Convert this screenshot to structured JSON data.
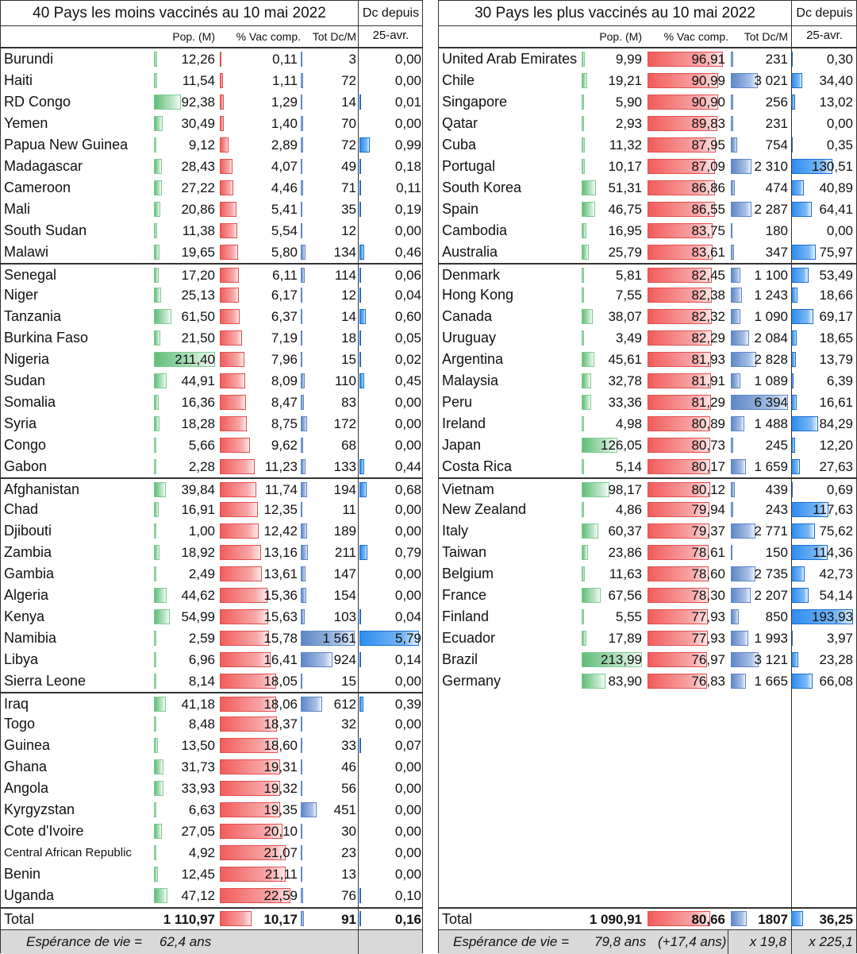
{
  "left": {
    "title": "40 Pays les moins vaccinés au 10 mai 2022",
    "dc_title": "Dc depuis",
    "headers": {
      "pop": "Pop. (M)",
      "vac": "% Vac comp.",
      "tot": "Tot Dc/M",
      "dc": "25-avr."
    },
    "rows": [
      {
        "country": "Burundi",
        "pop": "12,26",
        "vac": "0,11",
        "tot": "3",
        "dc": "0,00"
      },
      {
        "country": "Haiti",
        "pop": "11,54",
        "vac": "1,11",
        "tot": "72",
        "dc": "0,00"
      },
      {
        "country": "RD Congo",
        "pop": "92,38",
        "vac": "1,29",
        "tot": "14",
        "dc": "0,01"
      },
      {
        "country": "Yemen",
        "pop": "30,49",
        "vac": "1,40",
        "tot": "70",
        "dc": "0,00"
      },
      {
        "country": "Papua New Guinea",
        "pop": "9,12",
        "vac": "2,89",
        "tot": "72",
        "dc": "0,99"
      },
      {
        "country": "Madagascar",
        "pop": "28,43",
        "vac": "4,07",
        "tot": "49",
        "dc": "0,18"
      },
      {
        "country": "Cameroon",
        "pop": "27,22",
        "vac": "4,46",
        "tot": "71",
        "dc": "0,11"
      },
      {
        "country": "Mali",
        "pop": "20,86",
        "vac": "5,41",
        "tot": "35",
        "dc": "0,19"
      },
      {
        "country": "South Sudan",
        "pop": "11,38",
        "vac": "5,54",
        "tot": "12",
        "dc": "0,00"
      },
      {
        "country": "Malawi",
        "pop": "19,65",
        "vac": "5,80",
        "tot": "134",
        "dc": "0,46"
      },
      {
        "country": "Senegal",
        "pop": "17,20",
        "vac": "6,11",
        "tot": "114",
        "dc": "0,06"
      },
      {
        "country": "Niger",
        "pop": "25,13",
        "vac": "6,17",
        "tot": "12",
        "dc": "0,04"
      },
      {
        "country": "Tanzania",
        "pop": "61,50",
        "vac": "6,37",
        "tot": "14",
        "dc": "0,60"
      },
      {
        "country": "Burkina Faso",
        "pop": "21,50",
        "vac": "7,19",
        "tot": "18",
        "dc": "0,05"
      },
      {
        "country": "Nigeria",
        "pop": "211,40",
        "vac": "7,96",
        "tot": "15",
        "dc": "0,02"
      },
      {
        "country": "Sudan",
        "pop": "44,91",
        "vac": "8,09",
        "tot": "110",
        "dc": "0,45"
      },
      {
        "country": "Somalia",
        "pop": "16,36",
        "vac": "8,47",
        "tot": "83",
        "dc": "0,00"
      },
      {
        "country": "Syria",
        "pop": "18,28",
        "vac": "8,75",
        "tot": "172",
        "dc": "0,00"
      },
      {
        "country": "Congo",
        "pop": "5,66",
        "vac": "9,62",
        "tot": "68",
        "dc": "0,00"
      },
      {
        "country": "Gabon",
        "pop": "2,28",
        "vac": "11,23",
        "tot": "133",
        "dc": "0,44"
      },
      {
        "country": "Afghanistan",
        "pop": "39,84",
        "vac": "11,74",
        "tot": "194",
        "dc": "0,68"
      },
      {
        "country": "Chad",
        "pop": "16,91",
        "vac": "12,35",
        "tot": "11",
        "dc": "0,00"
      },
      {
        "country": "Djibouti",
        "pop": "1,00",
        "vac": "12,42",
        "tot": "189",
        "dc": "0,00"
      },
      {
        "country": "Zambia",
        "pop": "18,92",
        "vac": "13,16",
        "tot": "211",
        "dc": "0,79"
      },
      {
        "country": "Gambia",
        "pop": "2,49",
        "vac": "13,61",
        "tot": "147",
        "dc": "0,00"
      },
      {
        "country": "Algeria",
        "pop": "44,62",
        "vac": "15,36",
        "tot": "154",
        "dc": "0,00"
      },
      {
        "country": "Kenya",
        "pop": "54,99",
        "vac": "15,63",
        "tot": "103",
        "dc": "0,04"
      },
      {
        "country": "Namibia",
        "pop": "2,59",
        "vac": "15,78",
        "tot": "1 561",
        "dc": "5,79"
      },
      {
        "country": "Libya",
        "pop": "6,96",
        "vac": "16,41",
        "tot": "924",
        "dc": "0,14"
      },
      {
        "country": "Sierra Leone",
        "pop": "8,14",
        "vac": "18,05",
        "tot": "15",
        "dc": "0,00"
      },
      {
        "country": "Iraq",
        "pop": "41,18",
        "vac": "18,06",
        "tot": "612",
        "dc": "0,39"
      },
      {
        "country": "Togo",
        "pop": "8,48",
        "vac": "18,37",
        "tot": "32",
        "dc": "0,00"
      },
      {
        "country": "Guinea",
        "pop": "13,50",
        "vac": "18,60",
        "tot": "33",
        "dc": "0,07"
      },
      {
        "country": "Ghana",
        "pop": "31,73",
        "vac": "19,31",
        "tot": "46",
        "dc": "0,00"
      },
      {
        "country": "Angola",
        "pop": "33,93",
        "vac": "19,32",
        "tot": "56",
        "dc": "0,00"
      },
      {
        "country": "Kyrgyzstan",
        "pop": "6,63",
        "vac": "19,35",
        "tot": "451",
        "dc": "0,00"
      },
      {
        "country": "Cote d'Ivoire",
        "pop": "27,05",
        "vac": "20,10",
        "tot": "30",
        "dc": "0,00"
      },
      {
        "country": "Central African Republic",
        "pop": "4,92",
        "vac": "21,07",
        "tot": "23",
        "dc": "0,00"
      },
      {
        "country": "Benin",
        "pop": "12,45",
        "vac": "21,11",
        "tot": "13",
        "dc": "0,00"
      },
      {
        "country": "Uganda",
        "pop": "47,12",
        "vac": "22,59",
        "tot": "76",
        "dc": "0,10"
      }
    ],
    "total": {
      "label": "Total",
      "pop": "1 110,97",
      "vac": "10,17",
      "tot": "91",
      "dc": "0,16"
    },
    "life": {
      "label": "Espérance de vie =",
      "value": "62,4 ans"
    }
  },
  "right": {
    "title": "30 Pays les plus  vaccinés au 10 mai 2022",
    "dc_title": "Dc depuis",
    "headers": {
      "pop": "Pop. (M)",
      "vac": "% Vac comp.",
      "tot": "Tot Dc/M",
      "dc": "25-avr."
    },
    "rows": [
      {
        "country": "United Arab Emirates",
        "pop": "9,99",
        "vac": "96,91",
        "tot": "231",
        "dc": "0,30"
      },
      {
        "country": "Chile",
        "pop": "19,21",
        "vac": "90,99",
        "tot": "3 021",
        "dc": "34,40"
      },
      {
        "country": "Singapore",
        "pop": "5,90",
        "vac": "90,90",
        "tot": "256",
        "dc": "13,02"
      },
      {
        "country": "Qatar",
        "pop": "2,93",
        "vac": "89,83",
        "tot": "231",
        "dc": "0,00"
      },
      {
        "country": "Cuba",
        "pop": "11,32",
        "vac": "87,95",
        "tot": "754",
        "dc": "0,35"
      },
      {
        "country": "Portugal",
        "pop": "10,17",
        "vac": "87,09",
        "tot": "2 310",
        "dc": "130,51"
      },
      {
        "country": "South Korea",
        "pop": "51,31",
        "vac": "86,86",
        "tot": "474",
        "dc": "40,89"
      },
      {
        "country": "Spain",
        "pop": "46,75",
        "vac": "86,55",
        "tot": "2 287",
        "dc": "64,41"
      },
      {
        "country": "Cambodia",
        "pop": "16,95",
        "vac": "83,75",
        "tot": "180",
        "dc": "0,00"
      },
      {
        "country": "Australia",
        "pop": "25,79",
        "vac": "83,61",
        "tot": "347",
        "dc": "75,97"
      },
      {
        "country": "Denmark",
        "pop": "5,81",
        "vac": "82,45",
        "tot": "1 100",
        "dc": "53,49"
      },
      {
        "country": "Hong Kong",
        "pop": "7,55",
        "vac": "82,38",
        "tot": "1 243",
        "dc": "18,66"
      },
      {
        "country": "Canada",
        "pop": "38,07",
        "vac": "82,32",
        "tot": "1 090",
        "dc": "69,17"
      },
      {
        "country": "Uruguay",
        "pop": "3,49",
        "vac": "82,29",
        "tot": "2 084",
        "dc": "18,65"
      },
      {
        "country": "Argentina",
        "pop": "45,61",
        "vac": "81,93",
        "tot": "2 828",
        "dc": "13,79"
      },
      {
        "country": "Malaysia",
        "pop": "32,78",
        "vac": "81,91",
        "tot": "1 089",
        "dc": "6,39"
      },
      {
        "country": "Peru",
        "pop": "33,36",
        "vac": "81,29",
        "tot": "6 394",
        "dc": "16,61"
      },
      {
        "country": "Ireland",
        "pop": "4,98",
        "vac": "80,89",
        "tot": "1 488",
        "dc": "84,29"
      },
      {
        "country": "Japan",
        "pop": "126,05",
        "vac": "80,73",
        "tot": "245",
        "dc": "12,20"
      },
      {
        "country": "Costa Rica",
        "pop": "5,14",
        "vac": "80,17",
        "tot": "1 659",
        "dc": "27,63"
      },
      {
        "country": "Vietnam",
        "pop": "98,17",
        "vac": "80,12",
        "tot": "439",
        "dc": "0,69"
      },
      {
        "country": "New Zealand",
        "pop": "4,86",
        "vac": "79,94",
        "tot": "243",
        "dc": "117,63"
      },
      {
        "country": "Italy",
        "pop": "60,37",
        "vac": "79,37",
        "tot": "2 771",
        "dc": "75,62"
      },
      {
        "country": "Taiwan",
        "pop": "23,86",
        "vac": "78,61",
        "tot": "150",
        "dc": "114,36"
      },
      {
        "country": "Belgium",
        "pop": "11,63",
        "vac": "78,60",
        "tot": "2 735",
        "dc": "42,73"
      },
      {
        "country": "France",
        "pop": "67,56",
        "vac": "78,30",
        "tot": "2 207",
        "dc": "54,14"
      },
      {
        "country": "Finland",
        "pop": "5,55",
        "vac": "77,93",
        "tot": "850",
        "dc": "193,93"
      },
      {
        "country": "Ecuador",
        "pop": "17,89",
        "vac": "77,93",
        "tot": "1 993",
        "dc": "3,97"
      },
      {
        "country": "Brazil",
        "pop": "213,99",
        "vac": "76,97",
        "tot": "3 121",
        "dc": "23,28"
      },
      {
        "country": "Germany",
        "pop": "83,90",
        "vac": "76,83",
        "tot": "1 665",
        "dc": "66,08"
      }
    ],
    "total": {
      "label": "Total",
      "pop": "1 090,91",
      "vac": "80,66",
      "tot": "1807",
      "dc": "36,25"
    },
    "life": {
      "label": "Espérance de vie =",
      "value": "79,8 ans",
      "delta": "(+17,4 ans)",
      "tot_ratio": "x 19,8",
      "dc_ratio": "x 225,1"
    }
  }
}
